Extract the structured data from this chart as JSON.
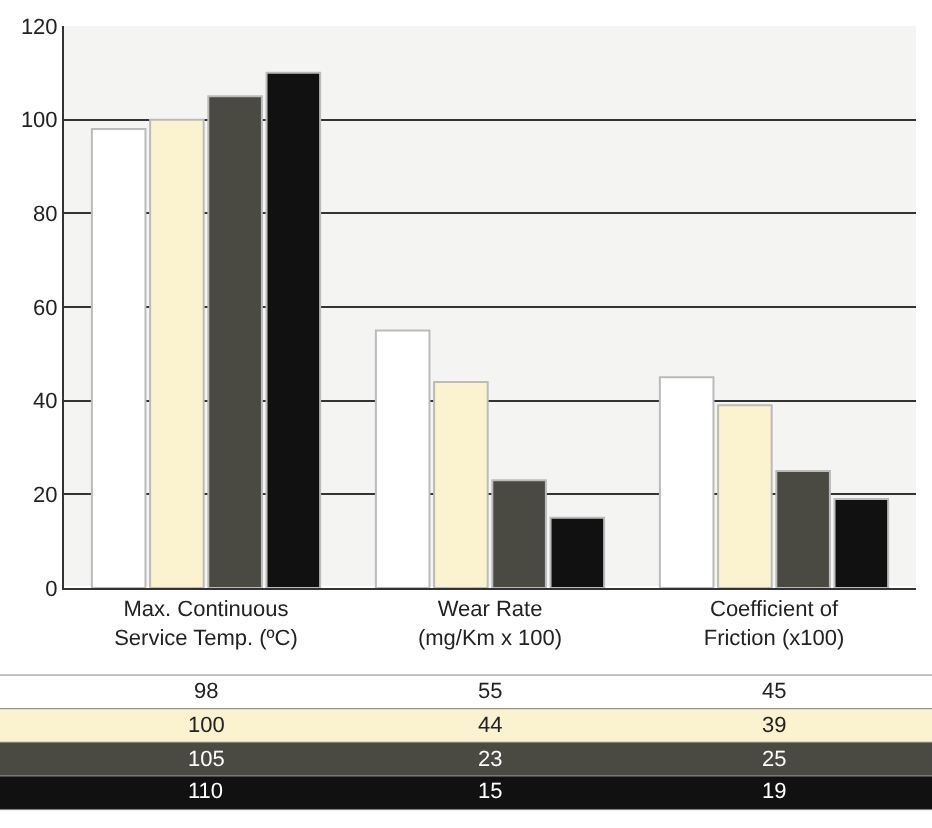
{
  "chart_data": {
    "type": "bar",
    "categories": [
      "Max. Continuous\nService Temp. (ºC)",
      "Wear Rate\n(mg/Km x 100)",
      "Coefficient of\nFriction (x100)"
    ],
    "series": [
      {
        "color": "#ffffff",
        "values": [
          98,
          55,
          45
        ]
      },
      {
        "color": "#fbf3cf",
        "values": [
          100,
          44,
          39
        ]
      },
      {
        "color": "#4a4a42",
        "values": [
          105,
          23,
          25
        ]
      },
      {
        "color": "#111111",
        "values": [
          110,
          15,
          19
        ]
      }
    ],
    "ylim": [
      0,
      120
    ],
    "yticks": [
      0,
      20,
      40,
      60,
      80,
      100,
      120
    ],
    "grid": "y",
    "data_labels": true
  }
}
